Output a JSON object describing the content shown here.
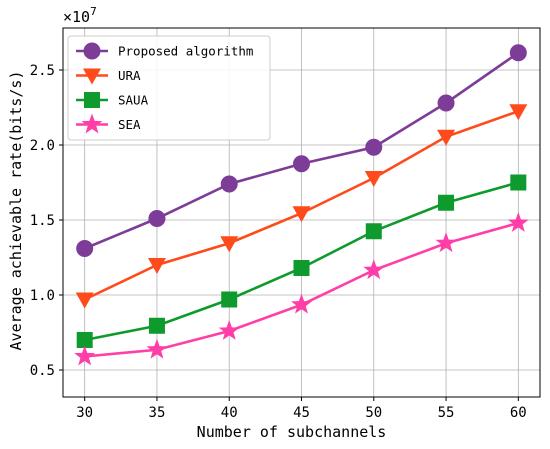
{
  "chart_data": {
    "type": "line",
    "x": [
      30,
      35,
      40,
      45,
      50,
      55,
      60
    ],
    "xlabel": "Number of subchannels",
    "ylabel": "Average achievable rate(bits/s)",
    "y_multiplier_label": "×10^7",
    "y_multiplier_base": "×10",
    "y_multiplier_exp": "7",
    "xlim": [
      28.5,
      61.5
    ],
    "ylim": [
      0.32,
      2.78
    ],
    "x_ticks": [
      30,
      35,
      40,
      45,
      50,
      55,
      60
    ],
    "y_ticks": [
      0.5,
      1.0,
      1.5,
      2.0,
      2.5
    ],
    "y_tick_labels": [
      "0.5",
      "1.0",
      "1.5",
      "2.0",
      "2.5"
    ],
    "grid": true,
    "legend_position": "top-left",
    "series": [
      {
        "name": "Proposed algorithm",
        "color": "#7d3c98",
        "marker": "circle",
        "values": [
          1.31,
          1.51,
          1.74,
          1.875,
          1.985,
          2.28,
          2.615
        ]
      },
      {
        "name": "URA",
        "color": "#ff4a1c",
        "marker": "triangle-down",
        "values": [
          0.97,
          1.2,
          1.345,
          1.545,
          1.78,
          2.055,
          2.225
        ]
      },
      {
        "name": "SAUA",
        "color": "#0e9a2c",
        "marker": "square",
        "values": [
          0.7,
          0.795,
          0.97,
          1.18,
          1.425,
          1.615,
          1.75
        ]
      },
      {
        "name": "SEA",
        "color": "#ff3ea8",
        "marker": "star",
        "values": [
          0.59,
          0.635,
          0.76,
          0.935,
          1.165,
          1.345,
          1.48
        ]
      }
    ]
  }
}
